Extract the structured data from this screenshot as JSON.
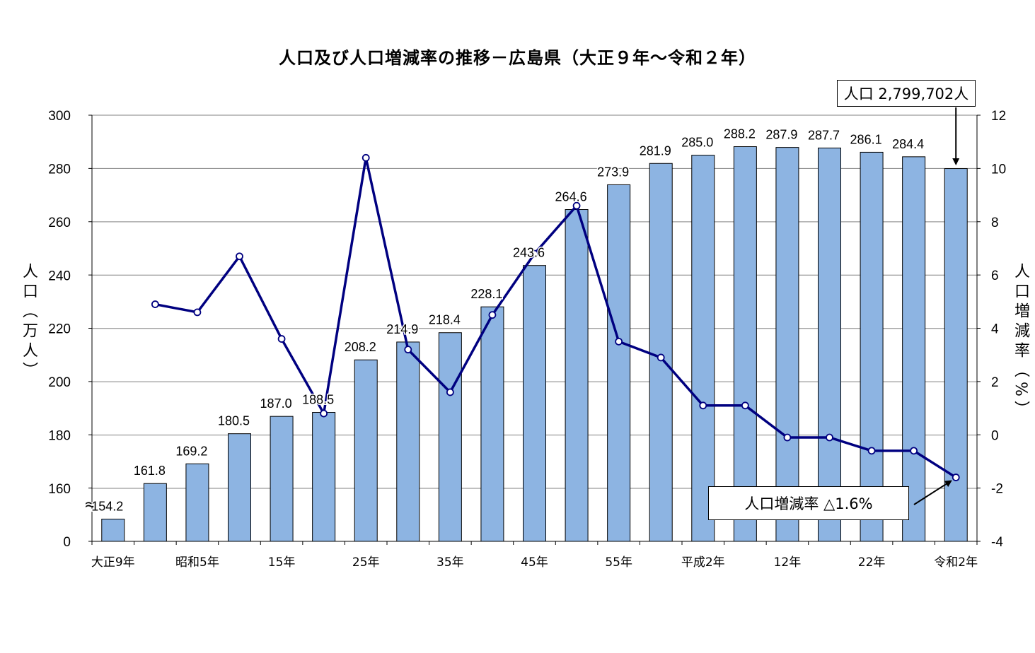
{
  "chart_data": {
    "type": "bar",
    "title": "人口及び人口増減率の推移－広島県（大正９年～令和２年）",
    "categories": [
      "大正9年",
      "",
      "昭和5年",
      "",
      "15年",
      "",
      "25年",
      "",
      "35年",
      "",
      "45年",
      "",
      "55年",
      "",
      "平成2年",
      "",
      "12年",
      "",
      "22年",
      "",
      "令和2年"
    ],
    "series": [
      {
        "name": "人口",
        "type": "bar",
        "axis": "left",
        "unit": "万人",
        "values": [
          154.2,
          161.8,
          169.2,
          180.5,
          187.0,
          188.5,
          208.2,
          214.9,
          218.4,
          228.1,
          243.6,
          264.6,
          273.9,
          281.9,
          285.0,
          288.2,
          287.9,
          287.7,
          286.1,
          284.4,
          279.97
        ],
        "data_labels": [
          "154.2",
          "161.8",
          "169.2",
          "180.5",
          "187.0",
          "188.5",
          "208.2",
          "214.9",
          "218.4",
          "228.1",
          "243.6",
          "264.6",
          "273.9",
          "281.9",
          "285.0",
          "288.2",
          "287.9",
          "287.7",
          "286.1",
          "284.4",
          ""
        ]
      },
      {
        "name": "人口増減率",
        "type": "line",
        "axis": "right",
        "unit": "%",
        "values": [
          null,
          4.9,
          4.6,
          6.7,
          3.6,
          0.8,
          10.4,
          3.2,
          1.6,
          4.5,
          6.8,
          8.6,
          3.5,
          2.9,
          1.1,
          1.1,
          -0.1,
          -0.1,
          -0.6,
          -0.6,
          -1.6
        ]
      }
    ],
    "ylabel": "人口（万人）",
    "ylabel2": "人口増減率（%）",
    "ylim": [
      150,
      300
    ],
    "y_ticks": [
      "0",
      "160",
      "180",
      "200",
      "220",
      "240",
      "260",
      "280",
      "300"
    ],
    "y_break": "≈",
    "ylim2": [
      -4,
      12
    ],
    "y2_ticks": [
      "-4",
      "-2",
      "0",
      "2",
      "4",
      "6",
      "8",
      "10",
      "12"
    ],
    "grid": true,
    "legend": "none",
    "annotations": {
      "population": "人口 2,799,702人",
      "rate": "人口増減率 △1.6%"
    },
    "colors": {
      "bar": "#8db4e2",
      "bar_border": "#000000",
      "line": "#000080",
      "marker_fill": "#ffffff"
    }
  }
}
